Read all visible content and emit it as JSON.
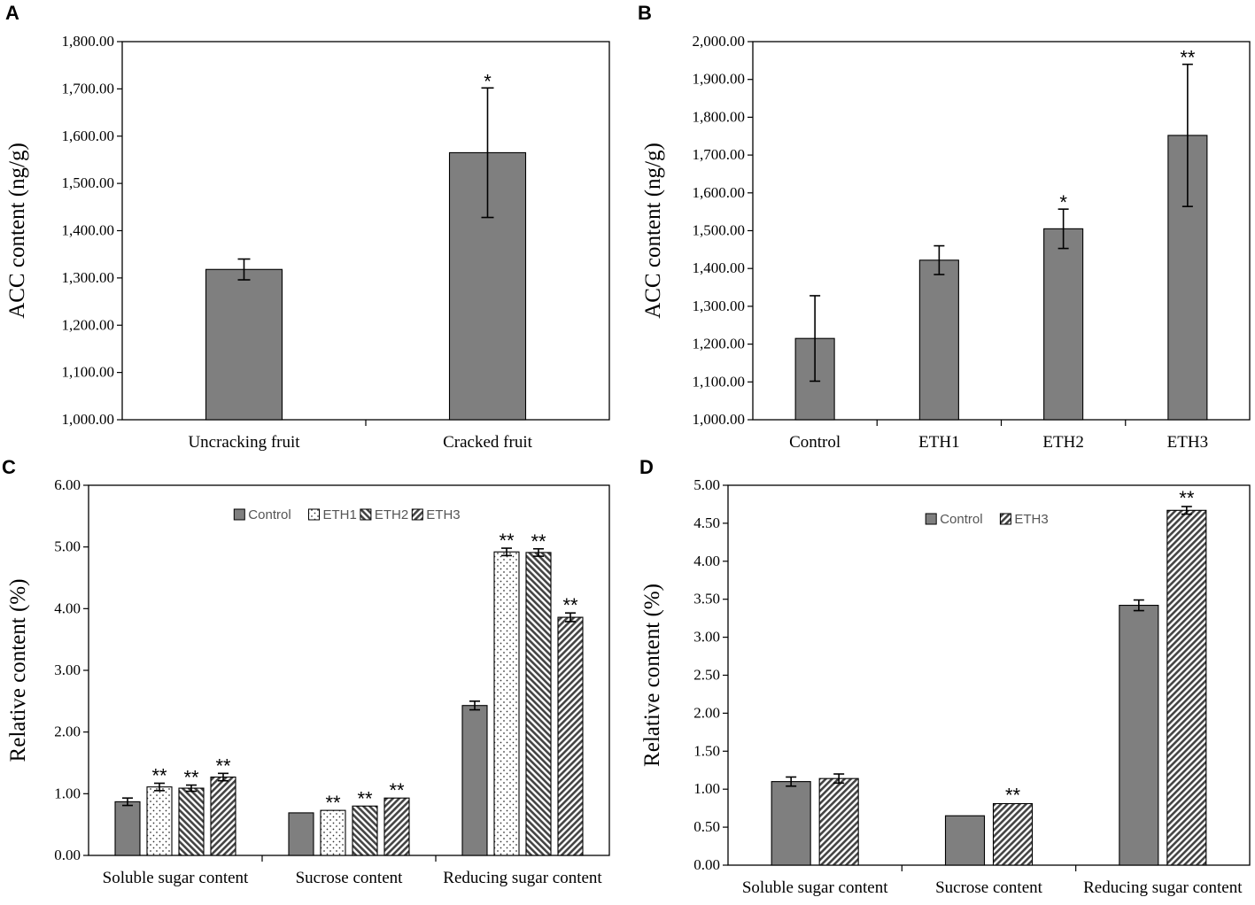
{
  "colors": {
    "bar_fill": "#7f7f7f",
    "bar_stroke": "#000000",
    "axis": "#000000",
    "background": "#ffffff"
  },
  "panels": {
    "a": "A",
    "b": "B",
    "c": "C",
    "d": "D"
  },
  "chart_data": [
    {
      "id": "a",
      "type": "bar",
      "title": "",
      "xlabel": "",
      "ylabel": "ACC content (ng/g)",
      "ylim": [
        1000,
        1800
      ],
      "yticks": [
        "1,000.00",
        "1,100.00",
        "1,200.00",
        "1,300.00",
        "1,400.00",
        "1,500.00",
        "1,600.00",
        "1,700.00",
        "1,800.00"
      ],
      "categories": [
        "Uncracking fruit",
        "Cracked fruit"
      ],
      "series": [
        {
          "name": "",
          "pattern": "solid",
          "values": [
            1318,
            1565
          ],
          "errors": [
            22,
            137
          ],
          "significance": [
            "",
            "*"
          ]
        }
      ],
      "legend": null
    },
    {
      "id": "b",
      "type": "bar",
      "title": "",
      "xlabel": "",
      "ylabel": "ACC content (ng/g)",
      "ylim": [
        1000,
        2000
      ],
      "yticks": [
        "1,000.00",
        "1,100.00",
        "1,200.00",
        "1,300.00",
        "1,400.00",
        "1,500.00",
        "1,600.00",
        "1,700.00",
        "1,800.00",
        "1,900.00",
        "2,000.00"
      ],
      "categories": [
        "Control",
        "ETH1",
        "ETH2",
        "ETH3"
      ],
      "series": [
        {
          "name": "",
          "pattern": "solid",
          "values": [
            1215,
            1422,
            1505,
            1752
          ],
          "errors": [
            113,
            38,
            52,
            188
          ],
          "significance": [
            "",
            "",
            "*",
            "**"
          ]
        }
      ],
      "legend": null
    },
    {
      "id": "c",
      "type": "bar",
      "title": "",
      "xlabel": "",
      "ylabel": "Relative content (%)",
      "ylim": [
        0,
        6
      ],
      "yticks": [
        "0.00",
        "1.00",
        "2.00",
        "3.00",
        "4.00",
        "5.00",
        "6.00"
      ],
      "categories": [
        "Soluble sugar content",
        "Sucrose content",
        "Reducing sugar content"
      ],
      "series": [
        {
          "name": "Control",
          "pattern": "solid",
          "values": [
            0.87,
            0.69,
            2.43
          ],
          "errors": [
            0.06,
            0.0,
            0.07
          ],
          "significance": [
            "",
            "",
            ""
          ]
        },
        {
          "name": "ETH1",
          "pattern": "dots",
          "values": [
            1.11,
            0.73,
            4.92
          ],
          "errors": [
            0.06,
            0.0,
            0.06
          ],
          "significance": [
            "**",
            "**",
            "**"
          ]
        },
        {
          "name": "ETH2",
          "pattern": "backslash",
          "values": [
            1.09,
            0.8,
            4.91
          ],
          "errors": [
            0.05,
            0.0,
            0.06
          ],
          "significance": [
            "**",
            "**",
            "**"
          ]
        },
        {
          "name": "ETH3",
          "pattern": "slash",
          "values": [
            1.27,
            0.93,
            3.86
          ],
          "errors": [
            0.06,
            0.0,
            0.07
          ],
          "significance": [
            "**",
            "**",
            "**"
          ]
        }
      ],
      "legend": {
        "position": "top-center",
        "entries": [
          "Control",
          "ETH1",
          "ETH2",
          "ETH3"
        ]
      }
    },
    {
      "id": "d",
      "type": "bar",
      "title": "",
      "xlabel": "",
      "ylabel": "Relative content (%)",
      "ylim": [
        0,
        5
      ],
      "yticks": [
        "0.00",
        "0.50",
        "1.00",
        "1.50",
        "2.00",
        "2.50",
        "3.00",
        "3.50",
        "4.00",
        "4.50",
        "5.00"
      ],
      "categories": [
        "Soluble sugar content",
        "Sucrose content",
        "Reducing sugar content"
      ],
      "series": [
        {
          "name": "Control",
          "pattern": "solid",
          "values": [
            1.1,
            0.65,
            3.42
          ],
          "errors": [
            0.06,
            0.0,
            0.07
          ],
          "significance": [
            "",
            "",
            ""
          ]
        },
        {
          "name": "ETH3",
          "pattern": "slash",
          "values": [
            1.14,
            0.81,
            4.67
          ],
          "errors": [
            0.06,
            0.0,
            0.05
          ],
          "significance": [
            "",
            "**",
            "**"
          ]
        }
      ],
      "legend": {
        "position": "top-center",
        "entries": [
          "Control",
          "ETH3"
        ]
      }
    }
  ]
}
